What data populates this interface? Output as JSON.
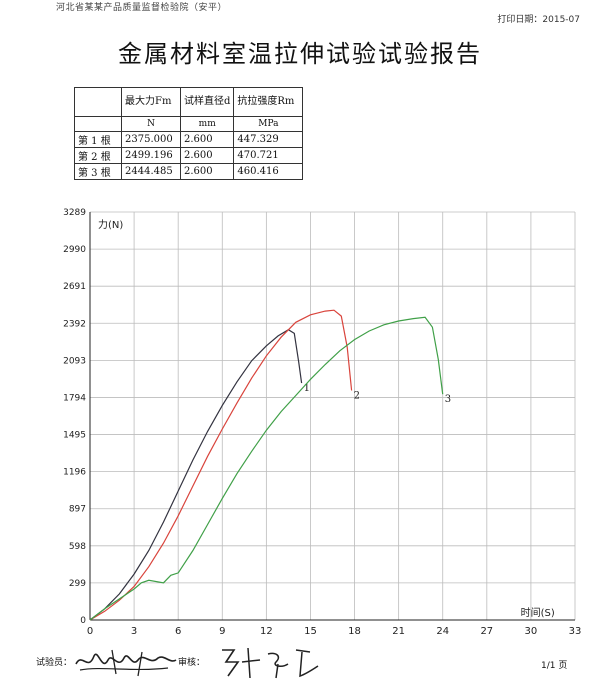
{
  "header": {
    "org": "河北省某某产品质量监督检验院（安平）",
    "print_date": "打印日期：2015-07"
  },
  "report": {
    "title": "金属材料室温拉伸试验试验报告"
  },
  "table": {
    "columns": [
      "",
      "最大力Fm",
      "试样直径d",
      "抗拉强度Rm"
    ],
    "units": [
      "",
      "N",
      "mm",
      "MPa"
    ],
    "rows": [
      [
        "第 1 根",
        "2375.000",
        "2.600",
        "447.329"
      ],
      [
        "第 2 根",
        "2499.196",
        "2.600",
        "470.721"
      ],
      [
        "第 3 根",
        "2444.485",
        "2.600",
        "460.416"
      ]
    ]
  },
  "chart_data": {
    "type": "line",
    "title": "",
    "xlabel": "时间(S)",
    "ylabel": "力(N)",
    "xlim": [
      0,
      33
    ],
    "ylim": [
      0,
      3289
    ],
    "x_ticks": [
      "0",
      "3",
      "6",
      "9",
      "12",
      "15",
      "18",
      "21",
      "24",
      "27",
      "30",
      "33"
    ],
    "y_ticks": [
      "0",
      "299",
      "598",
      "897",
      "1196",
      "1495",
      "1794",
      "2093",
      "2392",
      "2691",
      "2990",
      "3289"
    ],
    "grid": true,
    "series": [
      {
        "name": "1",
        "color": "#333340",
        "points": [
          [
            0,
            0
          ],
          [
            1,
            90
          ],
          [
            2,
            210
          ],
          [
            3,
            370
          ],
          [
            4,
            560
          ],
          [
            5,
            790
          ],
          [
            6,
            1040
          ],
          [
            7,
            1290
          ],
          [
            8,
            1520
          ],
          [
            9,
            1730
          ],
          [
            10,
            1920
          ],
          [
            11,
            2090
          ],
          [
            12,
            2210
          ],
          [
            12.8,
            2290
          ],
          [
            13.5,
            2340
          ],
          [
            13.9,
            2310
          ],
          [
            14.2,
            2080
          ],
          [
            14.4,
            1910
          ]
        ]
      },
      {
        "name": "2",
        "color": "#d9443c",
        "points": [
          [
            0,
            0
          ],
          [
            1,
            70
          ],
          [
            2,
            160
          ],
          [
            3,
            270
          ],
          [
            4,
            430
          ],
          [
            5,
            620
          ],
          [
            6,
            840
          ],
          [
            7,
            1080
          ],
          [
            8,
            1320
          ],
          [
            9,
            1540
          ],
          [
            10,
            1750
          ],
          [
            11,
            1950
          ],
          [
            12,
            2130
          ],
          [
            13,
            2280
          ],
          [
            14,
            2400
          ],
          [
            15,
            2460
          ],
          [
            16,
            2490
          ],
          [
            16.6,
            2497
          ],
          [
            17.1,
            2450
          ],
          [
            17.5,
            2200
          ],
          [
            17.8,
            1850
          ]
        ]
      },
      {
        "name": "3",
        "color": "#40a048",
        "points": [
          [
            0,
            0
          ],
          [
            1,
            90
          ],
          [
            2,
            170
          ],
          [
            3,
            250
          ],
          [
            3.5,
            300
          ],
          [
            4,
            320
          ],
          [
            5,
            300
          ],
          [
            5.5,
            360
          ],
          [
            6,
            380
          ],
          [
            7,
            560
          ],
          [
            8,
            770
          ],
          [
            9,
            980
          ],
          [
            10,
            1180
          ],
          [
            11,
            1360
          ],
          [
            12,
            1530
          ],
          [
            13,
            1680
          ],
          [
            14,
            1810
          ],
          [
            15,
            1940
          ],
          [
            16,
            2060
          ],
          [
            17,
            2170
          ],
          [
            18,
            2260
          ],
          [
            19,
            2330
          ],
          [
            20,
            2380
          ],
          [
            21,
            2410
          ],
          [
            22,
            2430
          ],
          [
            22.8,
            2440
          ],
          [
            23.3,
            2360
          ],
          [
            23.7,
            2100
          ],
          [
            24,
            1820
          ]
        ]
      }
    ]
  },
  "footer": {
    "tester_label": "试验员：",
    "reviewer_label": "审核：",
    "page": "1/1 页"
  }
}
